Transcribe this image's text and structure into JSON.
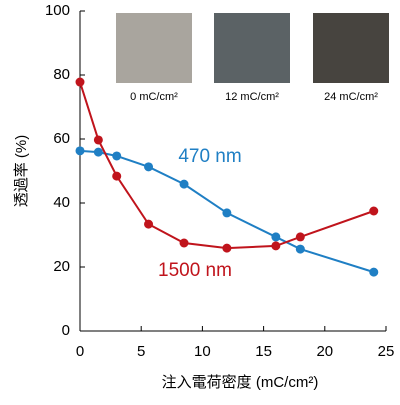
{
  "chart_data": {
    "type": "line",
    "xlabel": "注入電荷密度 (mC/cm²)",
    "ylabel": "透過率 (%)",
    "xlim": [
      0,
      25
    ],
    "xticks": [
      0,
      5,
      10,
      15,
      20,
      25
    ],
    "ylim": [
      0,
      100
    ],
    "yticks": [
      0,
      20,
      40,
      60,
      80,
      100
    ],
    "grid": false,
    "image_labels": [
      "0 mC/cm²",
      "12 mC/cm²",
      "24 mC/cm²"
    ],
    "series": [
      {
        "name": "470 nm",
        "color": "#1f7fc4",
        "x": [
          0,
          1.5,
          3,
          5.6,
          8.5,
          12,
          16,
          18,
          24
        ],
        "values": [
          56.3,
          55.9,
          54.7,
          51.3,
          45.9,
          36.9,
          29.4,
          25.6,
          18.4
        ]
      },
      {
        "name": "1500 nm",
        "color": "#c0141c",
        "x": [
          0,
          1.5,
          3,
          5.6,
          8.5,
          12,
          16,
          18,
          24
        ],
        "values": [
          77.8,
          59.7,
          48.4,
          33.4,
          27.5,
          25.9,
          26.6,
          29.4,
          37.5
        ]
      }
    ]
  }
}
